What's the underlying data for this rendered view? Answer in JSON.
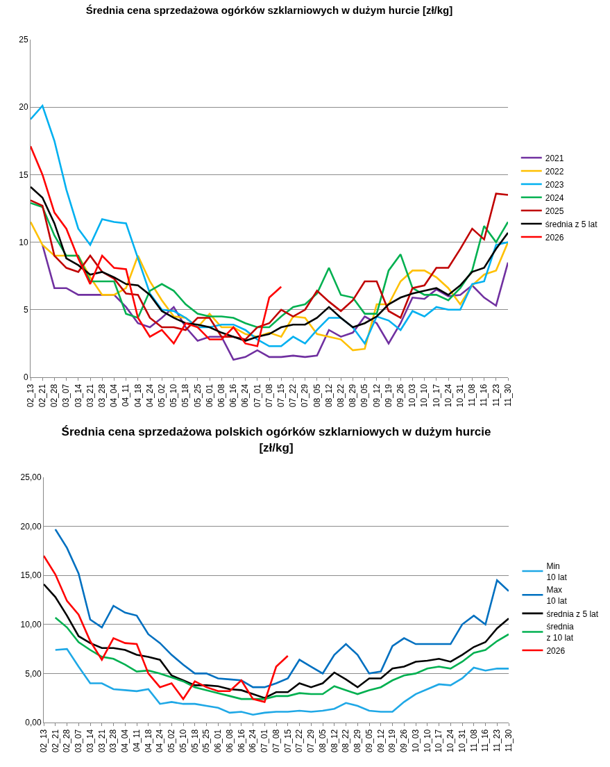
{
  "chart_data": [
    {
      "type": "line",
      "title": "Średnia cena sprzedażowa ogórków szklarniowych w dużym hurcie [zł/kg]",
      "categories": [
        "02_13",
        "02_21",
        "02_28",
        "03_07",
        "03_14",
        "03_21",
        "03_28",
        "04_04",
        "04_11",
        "04_18",
        "04_24",
        "05_02",
        "05_10",
        "05_18",
        "05_25",
        "06_01",
        "06_08",
        "06_16",
        "06_24",
        "07_01",
        "07_08",
        "07_15",
        "07_22",
        "07_29",
        "08_05",
        "08_12",
        "08_22",
        "08_29",
        "09_05",
        "09_12",
        "09_19",
        "09_26",
        "10_03",
        "10_10",
        "10_17",
        "10_24",
        "10_31",
        "11_08",
        "11_16",
        "11_23",
        "11_30"
      ],
      "series": [
        {
          "name": "2021",
          "color": "#7030a0",
          "values": [
            null,
            9.8,
            6.6,
            6.6,
            6.1,
            6.1,
            6.1,
            6.1,
            5.2,
            4.0,
            3.7,
            4.4,
            5.2,
            3.7,
            2.7,
            3.0,
            3.0,
            1.3,
            1.5,
            2.0,
            1.5,
            1.5,
            1.6,
            1.5,
            1.6,
            3.5,
            3.0,
            3.3,
            4.5,
            4.0,
            2.5,
            4.0,
            5.9,
            5.8,
            6.5,
            6.0,
            6.1,
            6.8,
            5.9,
            5.3,
            8.5
          ]
        },
        {
          "name": "2022",
          "color": "#ffc000",
          "values": [
            11.5,
            9.8,
            9.0,
            9.0,
            9.0,
            7.4,
            6.1,
            6.1,
            6.6,
            9.0,
            7.1,
            5.7,
            4.5,
            4.4,
            3.7,
            4.7,
            3.7,
            3.7,
            3.2,
            3.0,
            3.3,
            3.0,
            4.5,
            4.4,
            3.2,
            3.0,
            2.8,
            2.0,
            2.1,
            5.4,
            5.4,
            7.1,
            7.9,
            7.9,
            7.4,
            6.6,
            5.4,
            6.8,
            7.6,
            7.9,
            10.0
          ]
        },
        {
          "name": "2023",
          "color": "#00b0f0",
          "values": [
            19.1,
            20.1,
            17.5,
            13.9,
            11.0,
            9.8,
            11.7,
            11.5,
            11.4,
            8.8,
            6.2,
            5.0,
            4.9,
            4.4,
            3.7,
            3.7,
            3.9,
            3.9,
            3.5,
            2.8,
            2.3,
            2.3,
            3.0,
            2.5,
            3.5,
            4.4,
            4.4,
            3.7,
            2.5,
            4.5,
            4.2,
            3.5,
            4.9,
            4.5,
            5.2,
            5.0,
            5.0,
            6.9,
            7.1,
            9.8,
            10.0
          ]
        },
        {
          "name": "2024",
          "color": "#00b050",
          "values": [
            12.9,
            12.6,
            10.5,
            9.0,
            9.0,
            7.1,
            7.1,
            7.1,
            4.7,
            4.4,
            6.4,
            6.9,
            6.4,
            5.4,
            4.7,
            4.5,
            4.5,
            4.4,
            4.0,
            3.7,
            3.7,
            4.5,
            5.2,
            5.4,
            6.2,
            8.1,
            6.1,
            5.9,
            4.7,
            4.7,
            7.9,
            9.1,
            6.6,
            6.1,
            6.1,
            5.7,
            6.6,
            7.9,
            11.2,
            10.0,
            11.5
          ]
        },
        {
          "name": "2025",
          "color": "#c00000",
          "values": [
            13.1,
            12.7,
            9.0,
            8.1,
            7.8,
            9.0,
            7.8,
            7.3,
            6.2,
            6.1,
            4.4,
            3.7,
            3.7,
            3.5,
            4.4,
            4.4,
            3.0,
            3.0,
            2.8,
            3.7,
            4.0,
            5.0,
            4.5,
            5.0,
            6.4,
            5.6,
            4.9,
            5.7,
            7.1,
            7.1,
            4.9,
            4.4,
            6.6,
            6.8,
            8.1,
            8.1,
            9.5,
            11.0,
            10.2,
            13.6,
            13.5
          ]
        },
        {
          "name": "średnia z 5 lat",
          "color": "#000000",
          "values": [
            14.1,
            13.3,
            11.4,
            8.8,
            8.3,
            7.6,
            7.8,
            7.4,
            6.9,
            6.8,
            6.1,
            4.9,
            4.4,
            4.0,
            3.9,
            3.7,
            3.3,
            3.0,
            2.7,
            3.0,
            3.2,
            3.7,
            3.9,
            3.9,
            4.4,
            5.2,
            4.4,
            3.7,
            4.0,
            4.5,
            5.4,
            5.9,
            6.2,
            6.4,
            6.6,
            6.1,
            6.8,
            7.8,
            8.1,
            9.5,
            10.7
          ]
        },
        {
          "name": "2026",
          "color": "#ff0000",
          "values": [
            17.1,
            15.0,
            12.2,
            11.0,
            8.8,
            6.9,
            9.0,
            8.1,
            8.0,
            4.4,
            3.0,
            3.5,
            2.5,
            4.0,
            3.7,
            2.8,
            2.8,
            3.7,
            2.5,
            2.3,
            5.9,
            6.7,
            null,
            null,
            null,
            null,
            null,
            null,
            null,
            null,
            null,
            null,
            null,
            null,
            null,
            null,
            null,
            null,
            null,
            null,
            null
          ]
        }
      ],
      "ylim": [
        0,
        25
      ],
      "yticks": [
        0,
        5,
        10,
        15,
        20,
        25
      ],
      "grid": "y",
      "legend": "right"
    },
    {
      "type": "line",
      "title": "Średnia cena sprzedażowa polskich ogórków szklarniowych w dużym hurcie\n[zł/kg]",
      "categories": [
        "02_13",
        "02_21",
        "02_28",
        "03_07",
        "03_14",
        "03_21",
        "03_28",
        "04_04",
        "04_11",
        "04_18",
        "04_24",
        "05_02",
        "05_10",
        "05_18",
        "05_25",
        "06_01",
        "06_08",
        "06_16",
        "06_24",
        "07_01",
        "07_08",
        "07_15",
        "07_22",
        "07_29",
        "08_05",
        "08_12",
        "08_22",
        "08_29",
        "09_05",
        "09_12",
        "09_19",
        "09_26",
        "10_03",
        "10_10",
        "10_17",
        "10_24",
        "10_31",
        "11_08",
        "11_16",
        "11_23",
        "11_30"
      ],
      "series": [
        {
          "name": "Min\n10 lat",
          "color": "#1fa8e6",
          "values": [
            null,
            7.4,
            7.5,
            5.7,
            4.0,
            4.0,
            3.4,
            3.3,
            3.2,
            3.4,
            1.9,
            2.1,
            1.9,
            1.9,
            1.7,
            1.5,
            1.0,
            1.1,
            0.8,
            1.0,
            1.1,
            1.1,
            1.2,
            1.1,
            1.2,
            1.4,
            2.0,
            1.7,
            1.2,
            1.1,
            1.1,
            2.1,
            2.9,
            3.4,
            3.9,
            3.8,
            4.5,
            5.6,
            5.3,
            5.5,
            5.5
          ]
        },
        {
          "name": "Max\n10 lat",
          "color": "#0070c0",
          "values": [
            null,
            19.7,
            17.8,
            15.2,
            10.5,
            9.7,
            11.9,
            11.2,
            10.9,
            9.0,
            8.1,
            6.9,
            5.9,
            5.0,
            5.0,
            4.5,
            4.4,
            4.3,
            3.6,
            3.6,
            4.0,
            4.5,
            6.4,
            5.7,
            5.0,
            6.9,
            8.0,
            6.9,
            5.0,
            5.2,
            7.8,
            8.6,
            8.0,
            8.0,
            8.0,
            8.0,
            10.0,
            10.9,
            10.0,
            14.5,
            13.4
          ]
        },
        {
          "name": "średnia z 5 lat",
          "color": "#000000",
          "values": [
            14.1,
            12.8,
            10.9,
            8.8,
            8.1,
            7.6,
            7.6,
            7.4,
            6.9,
            6.7,
            6.4,
            4.8,
            4.3,
            3.8,
            3.8,
            3.7,
            3.4,
            3.3,
            2.9,
            2.5,
            3.1,
            3.1,
            4.0,
            3.6,
            4.0,
            5.1,
            4.4,
            3.6,
            4.5,
            4.5,
            5.5,
            5.7,
            6.2,
            6.3,
            6.5,
            6.2,
            6.9,
            7.7,
            8.2,
            9.6,
            10.6
          ]
        },
        {
          "name": "średnia\nz 10 lat",
          "color": "#00b050",
          "values": [
            null,
            10.7,
            9.7,
            8.2,
            7.4,
            6.7,
            6.5,
            5.9,
            5.2,
            5.3,
            5.0,
            4.6,
            4.2,
            3.6,
            3.3,
            3.0,
            2.7,
            2.4,
            2.4,
            2.4,
            2.7,
            2.7,
            3.0,
            2.9,
            2.9,
            3.7,
            3.3,
            2.9,
            3.3,
            3.6,
            4.3,
            4.8,
            5.0,
            5.5,
            5.7,
            5.5,
            6.2,
            7.1,
            7.4,
            8.3,
            9.0
          ]
        },
        {
          "name": "2026",
          "color": "#ff0000",
          "values": [
            17.0,
            15.1,
            12.4,
            11.0,
            8.3,
            6.4,
            8.6,
            8.1,
            8.0,
            5.0,
            3.6,
            4.0,
            2.4,
            4.2,
            3.6,
            3.2,
            3.2,
            4.3,
            2.4,
            2.1,
            5.7,
            6.8,
            null,
            null,
            null,
            null,
            null,
            null,
            null,
            null,
            null,
            null,
            null,
            null,
            null,
            null,
            null,
            null,
            null,
            null,
            null
          ]
        }
      ],
      "ylim": [
        0,
        25
      ],
      "yticks": [
        {
          "value": 0,
          "label": "0,00"
        },
        {
          "value": 5,
          "label": "5,00"
        },
        {
          "value": 10,
          "label": "10,00"
        },
        {
          "value": 15,
          "label": "15,00"
        },
        {
          "value": 20,
          "label": "20,00"
        },
        {
          "value": 25,
          "label": "25,00"
        }
      ],
      "grid": "y",
      "legend": "right"
    }
  ]
}
